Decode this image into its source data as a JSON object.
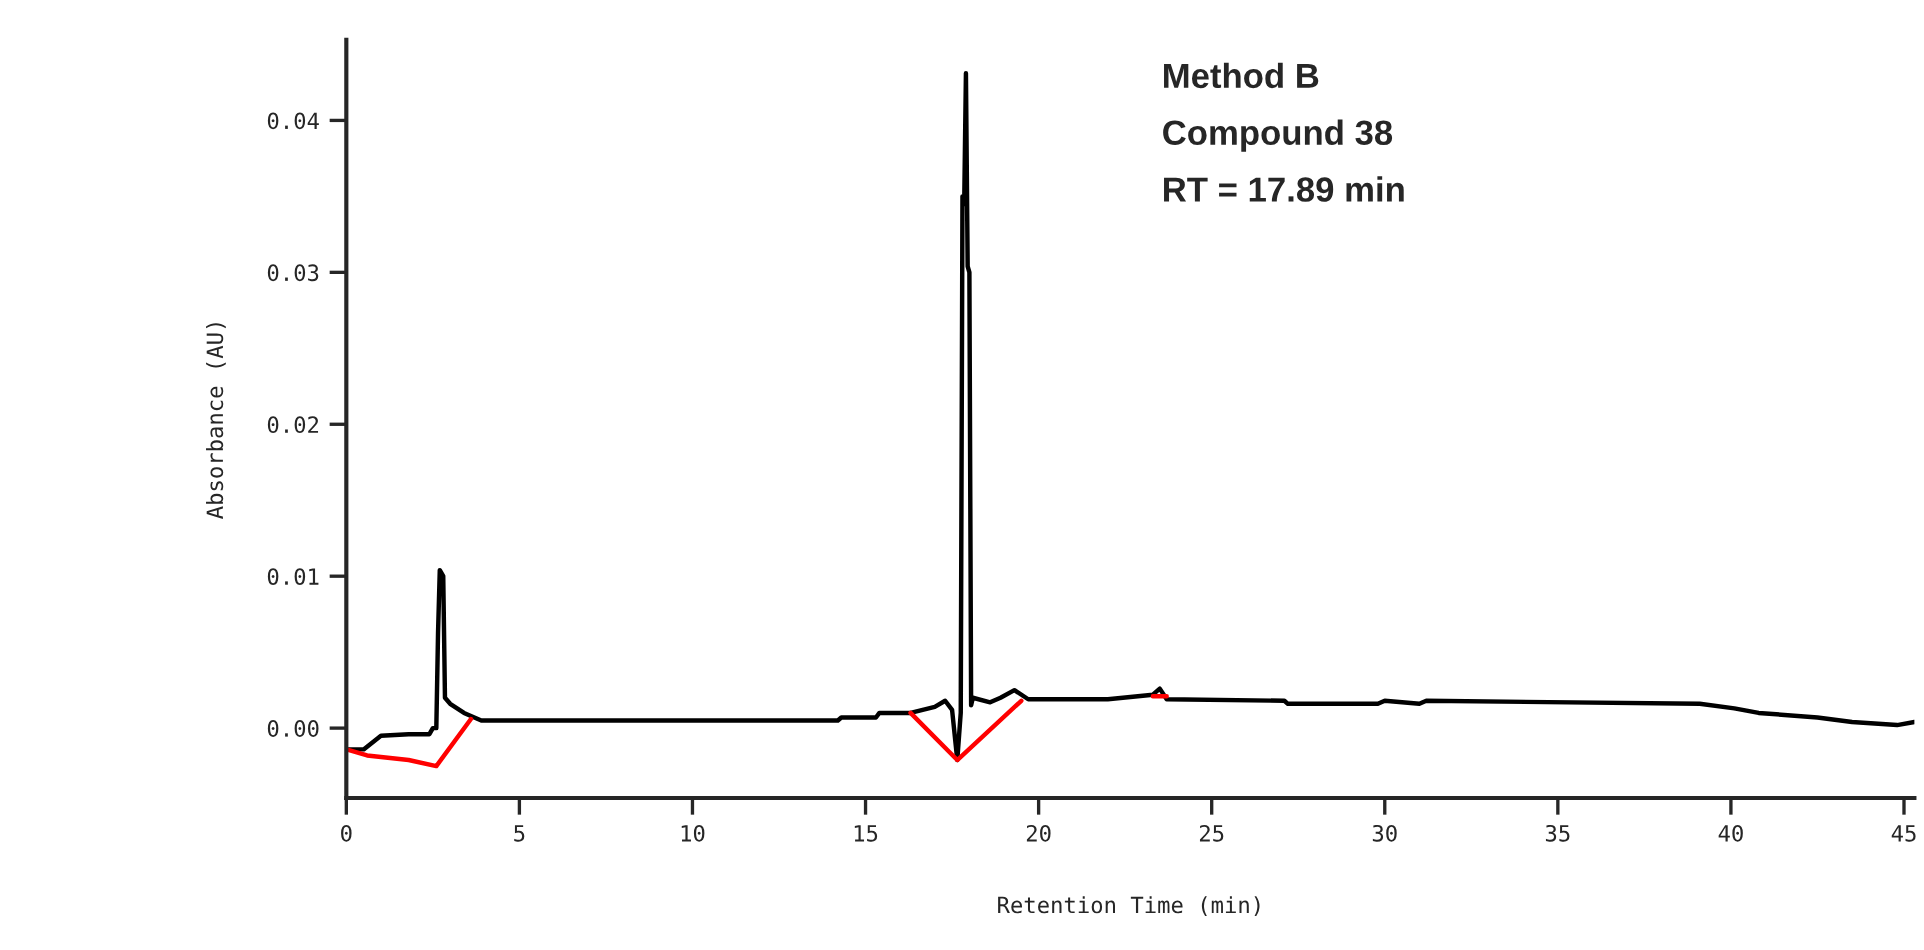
{
  "chart_data": {
    "type": "line",
    "xlabel": "Retention Time (min)",
    "ylabel": "Absorbance (AU)",
    "annotations": [
      "Method B",
      "Compound 38",
      "RT = 17.89 min"
    ],
    "xlim": [
      0,
      45.3
    ],
    "ylim": [
      -0.0046,
      0.0453
    ],
    "xticks": [
      0,
      5,
      10,
      15,
      20,
      25,
      30,
      35,
      40,
      45
    ],
    "yticks": [
      {
        "value": 0,
        "label": "0.00"
      },
      {
        "value": 0.01,
        "label": "0.01"
      },
      {
        "value": 0.02,
        "label": "0.02"
      },
      {
        "value": 0.03,
        "label": "0.03"
      },
      {
        "value": 0.04,
        "label": "0.04"
      }
    ],
    "grid": false,
    "legend": false,
    "marker": "none",
    "line_style": "solid",
    "series": [
      {
        "color": "#000000",
        "x": [
          0,
          0.5,
          1.0,
          1.8,
          2.4,
          2.5,
          2.6,
          2.65,
          2.7,
          2.8,
          2.85,
          3.0,
          3.4,
          3.6,
          3.9,
          14.2,
          14.3,
          15.3,
          15.4,
          16.3,
          17.0,
          17.3,
          17.5,
          17.65,
          17.75,
          17.8,
          17.85,
          17.9,
          17.95,
          18.0,
          18.05,
          18.1,
          18.6,
          18.9,
          19.3,
          19.7,
          22.0,
          23.3,
          23.5,
          23.7,
          27.1,
          27.2,
          29.8,
          30.0,
          31.0,
          31.2,
          39.1,
          40.1,
          40.8,
          42.5,
          43.5,
          44.8,
          45.3
        ],
        "values": [
          -0.0014,
          -0.0014,
          -0.0005,
          -0.0004,
          -0.0004,
          0.0,
          0.0,
          0.0063,
          0.0104,
          0.01,
          0.002,
          0.0016,
          0.001,
          0.0008,
          0.0005,
          0.0005,
          0.0007,
          0.0007,
          0.001,
          0.001,
          0.0014,
          0.0018,
          0.0012,
          -0.0021,
          0.001,
          0.035,
          0.0345,
          0.0431,
          0.0304,
          0.03,
          0.0015,
          0.002,
          0.0017,
          0.002,
          0.0025,
          0.0019,
          0.0019,
          0.0022,
          0.0026,
          0.0019,
          0.0018,
          0.0016,
          0.0016,
          0.0018,
          0.0016,
          0.0018,
          0.0016,
          0.0013,
          0.001,
          0.0007,
          0.0004,
          0.0002,
          0.0004
        ]
      },
      {
        "color": "#ff0000",
        "x": [
          0,
          0.6,
          1.8,
          2.6,
          3.6,
          10,
          16.3,
          17.65,
          19.5,
          21,
          23.3,
          23.7
        ],
        "values": [
          -0.0014,
          -0.0018,
          -0.0021,
          -0.0025,
          0.0006,
          null,
          0.001,
          -0.0021,
          0.0018,
          null,
          0.0021,
          0.0021
        ]
      }
    ]
  }
}
